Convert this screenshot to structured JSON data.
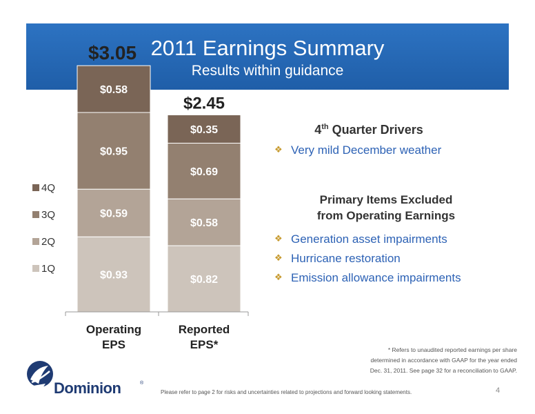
{
  "header": {
    "title": "2011 Earnings Summary",
    "subtitle": "Results within guidance"
  },
  "chart_data": {
    "type": "bar",
    "stacked": true,
    "categories": [
      "Operating EPS",
      "Reported EPS*"
    ],
    "category_labels": [
      [
        "Operating",
        "EPS"
      ],
      [
        "Reported",
        "EPS*"
      ]
    ],
    "series": [
      {
        "name": "1Q",
        "values": [
          0.93,
          0.82
        ],
        "labels": [
          "$0.93",
          "$0.82"
        ],
        "color": "#cdc4bb"
      },
      {
        "name": "2Q",
        "values": [
          0.59,
          0.58
        ],
        "labels": [
          "$0.59",
          "$0.58"
        ],
        "color": "#b3a497"
      },
      {
        "name": "3Q",
        "values": [
          0.95,
          0.69
        ],
        "labels": [
          "$0.95",
          "$0.69"
        ],
        "color": "#938070"
      },
      {
        "name": "4Q",
        "values": [
          0.58,
          0.35
        ],
        "labels": [
          "$0.58",
          "$0.35"
        ],
        "color": "#7a6556"
      }
    ],
    "totals": [
      3.05,
      2.45
    ],
    "total_labels": [
      "$3.05",
      "$2.45"
    ],
    "legend": {
      "position": "left",
      "order": [
        "4Q",
        "3Q",
        "2Q",
        "1Q"
      ]
    },
    "grid": false
  },
  "drivers": {
    "heading_main": "4",
    "heading_sup": "th",
    "heading_rest": " Quarter Drivers",
    "items": [
      "Very mild December weather"
    ]
  },
  "excluded": {
    "heading_line1": "Primary Items Excluded",
    "heading_line2": "from Operating Earnings",
    "items": [
      "Generation asset impairments",
      "Hurricane restoration",
      "Emission allowance impairments"
    ]
  },
  "bullet_marker": "❖",
  "footnote": {
    "line1": "* Refers to unaudited reported earnings per share",
    "line2": "determined in accordance with GAAP for the year ended",
    "line3": "Dec. 31, 2011. See page 32 for a reconciliation to GAAP."
  },
  "logo": {
    "name": "Dominion",
    "mark": "®"
  },
  "disclaimer": "Please refer to page 2 for risks and uncertainties related to projections and forward looking statements.",
  "page_number": "4"
}
